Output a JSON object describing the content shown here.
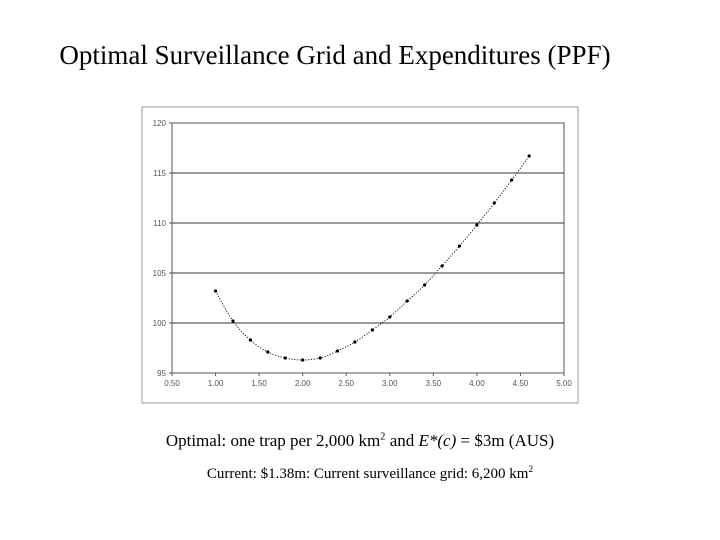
{
  "slide": {
    "title": "Optimal Surveillance Grid and Expenditures (PPF)",
    "caption_line1": {
      "prefix": "Optimal: one trap per 2,000 km",
      "sup": "2",
      "middle": " and ",
      "italic": "E*(c)",
      "suffix": " = $3m (AUS)"
    },
    "caption_line2": {
      "text": "Current: $1.38m: Current surveillance grid: 6,200 km",
      "sup": "2"
    }
  },
  "chart_data": {
    "type": "line",
    "title": "",
    "xlabel": "",
    "ylabel": "",
    "xlim": [
      0.5,
      5.0
    ],
    "ylim": [
      95,
      120
    ],
    "x_ticks": [
      "0.50",
      "1.00",
      "1.50",
      "2.00",
      "2.50",
      "3.00",
      "3.50",
      "4.00",
      "4.50",
      "5.00"
    ],
    "y_ticks": [
      "95",
      "100",
      "105",
      "110",
      "115",
      "120"
    ],
    "gridlines": "horizontal",
    "legend": "none",
    "series": [
      {
        "marker": "dot",
        "color": "#000000",
        "x": [
          1.0,
          1.2,
          1.4,
          1.6,
          1.8,
          2.0,
          2.2,
          2.4,
          2.6,
          2.8,
          3.0,
          3.2,
          3.4,
          3.6,
          3.8,
          4.0,
          4.2,
          4.4,
          4.6
        ],
        "y": [
          103.2,
          100.2,
          98.3,
          97.1,
          96.5,
          96.3,
          96.5,
          97.2,
          98.1,
          99.3,
          100.6,
          102.2,
          103.8,
          105.7,
          107.7,
          109.8,
          112.0,
          114.3,
          116.7
        ]
      }
    ]
  }
}
